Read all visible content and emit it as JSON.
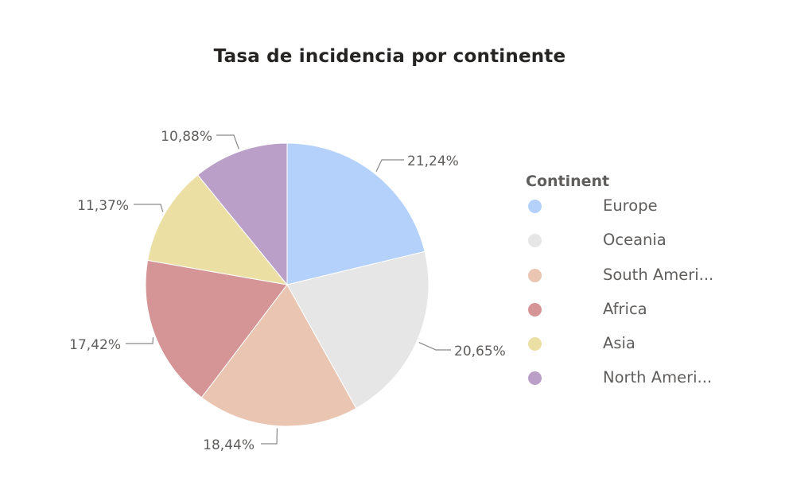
{
  "chart_data": {
    "type": "pie",
    "title": "Tasa de incidencia por continente",
    "legend_title": "Continent",
    "legend_position": "right",
    "slices": [
      {
        "label": "Europe",
        "legend_label": "Europe",
        "value": 21.24,
        "display": "21,24%",
        "color": "#b3d1fb"
      },
      {
        "label": "Oceania",
        "legend_label": "Oceania",
        "value": 20.65,
        "display": "20,65%",
        "color": "#e6e6e6"
      },
      {
        "label": "South America",
        "legend_label": "South Ameri...",
        "value": 18.44,
        "display": "18,44%",
        "color": "#eac5b2"
      },
      {
        "label": "Africa",
        "legend_label": "Africa",
        "value": 17.42,
        "display": "17,42%",
        "color": "#d59496"
      },
      {
        "label": "Asia",
        "legend_label": "Asia",
        "value": 11.37,
        "display": "11,37%",
        "color": "#ebdfa4"
      },
      {
        "label": "North America",
        "legend_label": "North Ameri...",
        "value": 10.88,
        "display": "10,88%",
        "color": "#baa0c8"
      }
    ]
  }
}
